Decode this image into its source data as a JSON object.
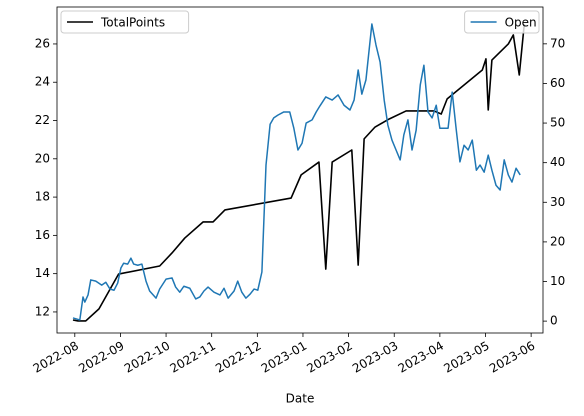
{
  "chart_data": {
    "type": "line",
    "xlabel": "Date",
    "xlim": [
      -0.39,
      10.26
    ],
    "xticks": [
      {
        "value": 0,
        "label": "2022-08"
      },
      {
        "value": 1,
        "label": "2022-09"
      },
      {
        "value": 2,
        "label": "2022-10"
      },
      {
        "value": 3,
        "label": "2022-11"
      },
      {
        "value": 4,
        "label": "2022-12"
      },
      {
        "value": 5,
        "label": "2023-01"
      },
      {
        "value": 6,
        "label": "2023-02"
      },
      {
        "value": 7,
        "label": "2023-03"
      },
      {
        "value": 8,
        "label": "2023-04"
      },
      {
        "value": 9,
        "label": "2023-05"
      },
      {
        "value": 10,
        "label": "2023-06"
      }
    ],
    "ylim": [
      10.9,
      27.93
    ],
    "yticks": [
      12,
      14,
      16,
      18,
      20,
      22,
      24,
      26
    ],
    "y2lim": [
      -3.0,
      79.3
    ],
    "y2ticks": [
      0,
      10,
      20,
      30,
      40,
      50,
      60,
      70
    ],
    "series": [
      {
        "name": "TotalPoints",
        "color": "#000000",
        "axis": "y",
        "legend": "upper left",
        "x": [
          -0.04,
          0.07,
          0.24,
          0.53,
          0.96,
          1.86,
          2.13,
          2.41,
          2.81,
          3.03,
          3.29,
          4.74,
          4.96,
          5.35,
          5.5,
          5.64,
          6.07,
          6.21,
          6.34,
          6.58,
          6.89,
          7.26,
          7.87,
          8.03,
          8.16,
          8.93,
          9.01,
          9.06,
          9.14,
          9.5,
          9.61,
          9.74,
          9.85
        ],
        "values": [
          11.58,
          11.53,
          11.53,
          12.16,
          13.98,
          14.4,
          15.08,
          15.86,
          16.7,
          16.7,
          17.33,
          17.95,
          19.16,
          19.83,
          14.24,
          19.83,
          20.46,
          14.45,
          21.04,
          21.66,
          22.08,
          22.5,
          22.5,
          22.34,
          23.13,
          24.64,
          25.22,
          22.55,
          25.16,
          26.0,
          26.47,
          24.38,
          27.04
        ]
      },
      {
        "name": "Open",
        "color": "#1f77b4",
        "axis": "y2",
        "legend": "upper right",
        "x": [
          -0.04,
          0.11,
          0.18,
          0.22,
          0.29,
          0.35,
          0.46,
          0.59,
          0.68,
          0.77,
          0.86,
          0.94,
          1.01,
          1.07,
          1.16,
          1.23,
          1.29,
          1.38,
          1.47,
          1.56,
          1.64,
          1.78,
          1.86,
          2.0,
          2.13,
          2.21,
          2.3,
          2.39,
          2.52,
          2.65,
          2.74,
          2.83,
          2.92,
          3.05,
          3.18,
          3.27,
          3.36,
          3.49,
          3.57,
          3.66,
          3.75,
          3.84,
          3.93,
          4.01,
          4.1,
          4.19,
          4.28,
          4.36,
          4.45,
          4.58,
          4.71,
          4.8,
          4.89,
          4.98,
          5.07,
          5.2,
          5.29,
          5.37,
          5.5,
          5.64,
          5.77,
          5.9,
          6.03,
          6.12,
          6.21,
          6.29,
          6.38,
          6.51,
          6.6,
          6.69,
          6.78,
          6.86,
          6.95,
          7.04,
          7.13,
          7.21,
          7.3,
          7.39,
          7.48,
          7.57,
          7.65,
          7.74,
          7.83,
          7.92,
          8.0,
          8.09,
          8.18,
          8.27,
          8.36,
          8.44,
          8.53,
          8.62,
          8.71,
          8.8,
          8.88,
          8.97,
          9.06,
          9.14,
          9.23,
          9.32,
          9.41,
          9.5,
          9.58,
          9.67,
          9.76
        ],
        "values": [
          0.8,
          0.3,
          6.1,
          4.8,
          6.6,
          10.4,
          10.1,
          9.1,
          9.8,
          8.1,
          7.8,
          9.6,
          13.4,
          14.6,
          14.4,
          15.9,
          14.4,
          14.1,
          14.4,
          10.1,
          7.6,
          5.8,
          8.1,
          10.6,
          10.9,
          8.6,
          7.3,
          8.8,
          8.3,
          5.6,
          6.1,
          7.6,
          8.6,
          7.3,
          6.6,
          8.3,
          5.8,
          7.6,
          10.1,
          7.3,
          5.8,
          6.8,
          8.1,
          7.8,
          12.4,
          39.4,
          49.7,
          51.3,
          52.0,
          52.8,
          52.8,
          48.7,
          43.2,
          44.9,
          50.0,
          50.8,
          52.8,
          54.3,
          56.6,
          55.8,
          57.1,
          54.5,
          53.3,
          55.8,
          63.4,
          57.3,
          60.9,
          75.0,
          69.7,
          65.4,
          55.8,
          49.5,
          45.7,
          43.2,
          40.7,
          47.0,
          50.8,
          43.2,
          48.2,
          59.6,
          64.6,
          52.8,
          51.3,
          54.5,
          48.7,
          48.7,
          48.7,
          57.8,
          48.2,
          40.2,
          44.4,
          43.2,
          45.7,
          38.1,
          39.4,
          37.6,
          41.9,
          38.1,
          34.3,
          33.1,
          40.7,
          36.9,
          35.1,
          38.6,
          36.9
        ]
      }
    ]
  }
}
